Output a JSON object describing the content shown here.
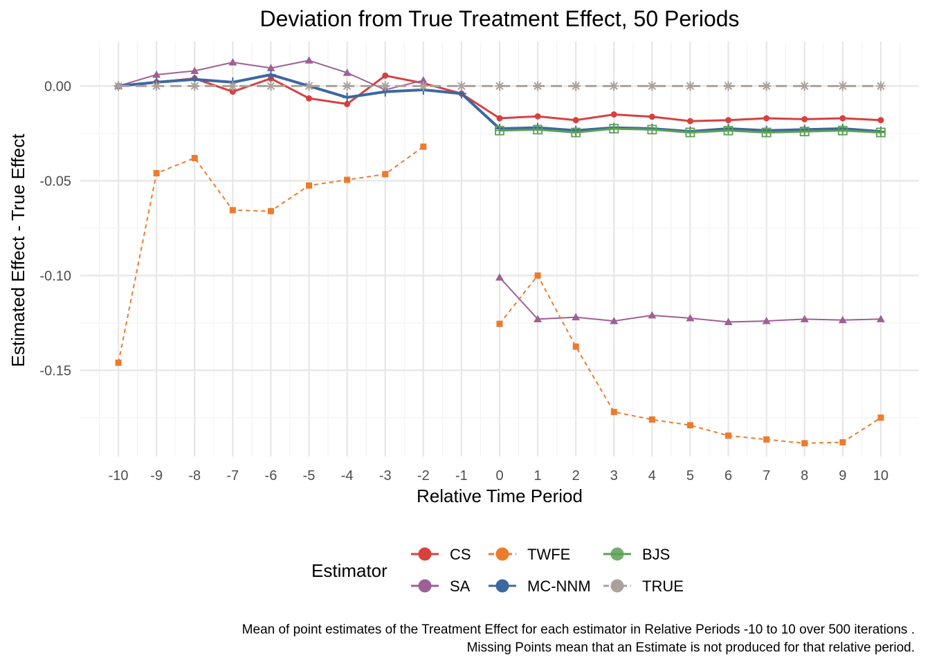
{
  "chart_data": {
    "type": "line",
    "title": "Deviation from True Treatment Effect, 50 Periods",
    "xlabel": "Relative Time Period",
    "ylabel": "Estimated Effect - True Effect",
    "xlim": [
      -11,
      11
    ],
    "ylim": [
      -0.1955,
      0.0235
    ],
    "x_ticks": [
      -10,
      -9,
      -8,
      -7,
      -6,
      -5,
      -4,
      -3,
      -2,
      -1,
      0,
      1,
      2,
      3,
      4,
      5,
      6,
      7,
      8,
      9,
      10
    ],
    "x_tick_labels": [
      "-10",
      "-9",
      "-8",
      "-7",
      "-6",
      "-5",
      "-4",
      "-3",
      "-2",
      "-1",
      "0",
      "1",
      "2",
      "3",
      "4",
      "5",
      "6",
      "7",
      "8",
      "9",
      "10"
    ],
    "y_ticks": [
      0.0,
      -0.05,
      -0.1,
      -0.15
    ],
    "y_tick_labels": [
      "0.00",
      "-0.05",
      "-0.10",
      "-0.15"
    ],
    "grid": true,
    "legend": {
      "title": "Estimator",
      "position": "bottom"
    },
    "caption_lines": [
      "Mean of point estimates of the Treatment Effect for each estimator in Relative Periods -10 to 10 over 500 iterations .",
      "Missing Points mean that an Estimate is not produced for that relative period."
    ],
    "series": [
      {
        "name": "CS",
        "color": "#d7403f",
        "marker": "circle",
        "dash": "solid",
        "width": 3,
        "legend_col": 0,
        "legend_row": 0,
        "x": [
          -10,
          -9,
          -8,
          -7,
          -6,
          -5,
          -4,
          -3,
          -2,
          -1,
          0,
          1,
          2,
          3,
          4,
          5,
          6,
          7,
          8,
          9,
          10
        ],
        "y": [
          0.0,
          0.002,
          0.004,
          -0.003,
          0.004,
          -0.0065,
          -0.0095,
          0.0055,
          0.0015,
          -0.004,
          -0.017,
          -0.016,
          -0.018,
          -0.015,
          -0.0162,
          -0.0185,
          -0.018,
          -0.017,
          -0.0175,
          -0.017,
          -0.018
        ]
      },
      {
        "name": "SA",
        "color": "#9e5f97",
        "marker": "triangle",
        "dash": "solid",
        "width": 2,
        "legend_col": 0,
        "legend_row": 1,
        "x": [
          -10,
          -9,
          -8,
          -7,
          -6,
          -5,
          -4,
          -3,
          -2,
          0,
          1,
          2,
          3,
          4,
          5,
          6,
          7,
          8,
          9,
          10
        ],
        "y": [
          0.0,
          0.006,
          0.008,
          0.0125,
          0.0095,
          0.0135,
          0.007,
          -0.002,
          0.003,
          -0.101,
          -0.123,
          -0.122,
          -0.124,
          -0.121,
          -0.1225,
          -0.1245,
          -0.124,
          -0.123,
          -0.1235,
          -0.123
        ]
      },
      {
        "name": "TWFE",
        "color": "#ed7b2c",
        "marker": "square",
        "dash": "6,5",
        "width": 2,
        "legend_col": 1,
        "legend_row": 0,
        "x": [
          -10,
          -9,
          -8,
          -7,
          -6,
          -5,
          -4,
          -3,
          -2,
          0,
          1,
          2,
          3,
          4,
          5,
          6,
          7,
          8,
          9,
          10
        ],
        "y": [
          -0.146,
          -0.046,
          -0.038,
          -0.0655,
          -0.066,
          -0.0525,
          -0.0495,
          -0.0465,
          -0.032,
          -0.1255,
          -0.1,
          -0.1375,
          -0.172,
          -0.176,
          -0.179,
          -0.1845,
          -0.1865,
          -0.1885,
          -0.188,
          -0.175
        ]
      },
      {
        "name": "MC-NNM",
        "color": "#3d67a0",
        "marker": "plus",
        "dash": "solid",
        "width": 4,
        "legend_col": 1,
        "legend_row": 1,
        "x": [
          -10,
          -9,
          -8,
          -7,
          -6,
          -5,
          -4,
          -3,
          -2,
          -1,
          0,
          1,
          2,
          3,
          4,
          5,
          6,
          7,
          8,
          9,
          10
        ],
        "y": [
          0.0,
          0.002,
          0.0035,
          0.002,
          0.006,
          0.0,
          -0.006,
          -0.003,
          -0.002,
          -0.004,
          -0.0225,
          -0.022,
          -0.0235,
          -0.022,
          -0.0225,
          -0.024,
          -0.0225,
          -0.0235,
          -0.023,
          -0.0225,
          -0.024
        ]
      },
      {
        "name": "BJS",
        "color": "#5aa152",
        "marker": "squareplus",
        "dash": "solid",
        "width": 3,
        "legend_col": 2,
        "legend_row": 0,
        "x": [
          0,
          1,
          2,
          3,
          4,
          5,
          6,
          7,
          8,
          9,
          10
        ],
        "y": [
          -0.0235,
          -0.023,
          -0.0245,
          -0.0225,
          -0.023,
          -0.0245,
          -0.0235,
          -0.0245,
          -0.024,
          -0.0235,
          -0.0245
        ]
      },
      {
        "name": "TRUE",
        "color": "#aba19b",
        "marker": "asterisk",
        "dash": "16,9",
        "width": 3,
        "legend_col": 2,
        "legend_row": 1,
        "x": [
          -10,
          -9,
          -8,
          -7,
          -6,
          -5,
          -4,
          -3,
          -2,
          -1,
          0,
          1,
          2,
          3,
          4,
          5,
          6,
          7,
          8,
          9,
          10
        ],
        "y": [
          0,
          0,
          0,
          0,
          0,
          0,
          0,
          0,
          0,
          0,
          0,
          0,
          0,
          0,
          0,
          0,
          0,
          0,
          0,
          0,
          0
        ]
      }
    ]
  }
}
